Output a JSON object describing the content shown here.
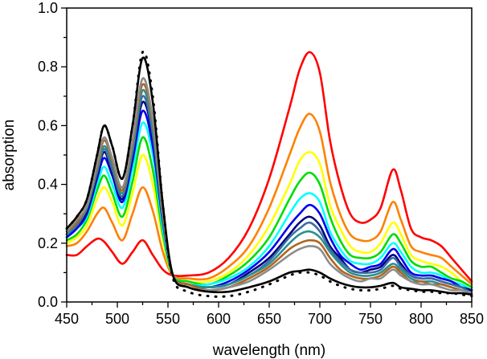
{
  "chart_data": {
    "type": "line",
    "title": "",
    "xlabel": "wavelength (nm)",
    "ylabel": "absorption",
    "xlim": [
      450,
      850
    ],
    "ylim": [
      0,
      1.0
    ],
    "xticks": [
      "450",
      "500",
      "550",
      "600",
      "650",
      "700",
      "750",
      "800",
      "850"
    ],
    "yticks": [
      "0.0",
      "0.2",
      "0.4",
      "0.6",
      "0.8",
      "1.0"
    ],
    "grid": false,
    "legend": "none",
    "x": [
      450,
      460,
      470,
      480,
      487,
      495,
      505,
      515,
      525,
      535,
      545,
      555,
      570,
      590,
      610,
      630,
      650,
      670,
      680,
      690,
      700,
      710,
      720,
      730,
      740,
      750,
      760,
      772,
      780,
      790,
      800,
      810,
      820,
      830,
      840,
      850
    ],
    "series": [
      {
        "color": "#ff0000",
        "style": "solid",
        "values": [
          0.16,
          0.16,
          0.19,
          0.215,
          0.205,
          0.17,
          0.13,
          0.17,
          0.21,
          0.16,
          0.11,
          0.09,
          0.09,
          0.1,
          0.15,
          0.25,
          0.42,
          0.66,
          0.79,
          0.85,
          0.78,
          0.55,
          0.4,
          0.3,
          0.27,
          0.28,
          0.32,
          0.45,
          0.38,
          0.25,
          0.22,
          0.21,
          0.19,
          0.15,
          0.11,
          0.07
        ]
      },
      {
        "color": "#ff8000",
        "style": "solid",
        "values": [
          0.19,
          0.2,
          0.24,
          0.3,
          0.32,
          0.27,
          0.21,
          0.3,
          0.39,
          0.31,
          0.17,
          0.09,
          0.08,
          0.08,
          0.12,
          0.19,
          0.32,
          0.5,
          0.59,
          0.64,
          0.58,
          0.41,
          0.3,
          0.23,
          0.21,
          0.21,
          0.24,
          0.34,
          0.28,
          0.19,
          0.17,
          0.16,
          0.15,
          0.12,
          0.09,
          0.06
        ]
      },
      {
        "color": "#ffff00",
        "style": "solid",
        "values": [
          0.2,
          0.22,
          0.26,
          0.35,
          0.39,
          0.34,
          0.26,
          0.37,
          0.5,
          0.4,
          0.21,
          0.09,
          0.07,
          0.07,
          0.1,
          0.16,
          0.26,
          0.4,
          0.48,
          0.51,
          0.47,
          0.33,
          0.25,
          0.19,
          0.17,
          0.17,
          0.2,
          0.27,
          0.23,
          0.16,
          0.14,
          0.13,
          0.12,
          0.1,
          0.07,
          0.05
        ]
      },
      {
        "color": "#00dd00",
        "style": "solid",
        "values": [
          0.21,
          0.23,
          0.28,
          0.38,
          0.43,
          0.37,
          0.29,
          0.41,
          0.56,
          0.45,
          0.23,
          0.09,
          0.07,
          0.06,
          0.09,
          0.14,
          0.22,
          0.35,
          0.41,
          0.44,
          0.4,
          0.29,
          0.21,
          0.16,
          0.15,
          0.15,
          0.17,
          0.23,
          0.2,
          0.14,
          0.12,
          0.12,
          0.1,
          0.08,
          0.07,
          0.05
        ]
      },
      {
        "color": "#00ffff",
        "style": "solid",
        "values": [
          0.22,
          0.25,
          0.29,
          0.4,
          0.46,
          0.4,
          0.32,
          0.45,
          0.61,
          0.5,
          0.25,
          0.09,
          0.06,
          0.06,
          0.08,
          0.12,
          0.19,
          0.3,
          0.35,
          0.37,
          0.34,
          0.24,
          0.18,
          0.14,
          0.13,
          0.13,
          0.15,
          0.2,
          0.17,
          0.12,
          0.1,
          0.1,
          0.09,
          0.07,
          0.06,
          0.04
        ]
      },
      {
        "color": "#0000ee",
        "style": "solid",
        "values": [
          0.22,
          0.25,
          0.3,
          0.42,
          0.49,
          0.43,
          0.34,
          0.48,
          0.65,
          0.53,
          0.27,
          0.09,
          0.06,
          0.05,
          0.07,
          0.11,
          0.17,
          0.26,
          0.3,
          0.33,
          0.3,
          0.22,
          0.16,
          0.13,
          0.11,
          0.12,
          0.13,
          0.18,
          0.15,
          0.1,
          0.09,
          0.09,
          0.08,
          0.07,
          0.05,
          0.04
        ]
      },
      {
        "color": "#000080",
        "style": "solid",
        "values": [
          0.23,
          0.26,
          0.31,
          0.43,
          0.51,
          0.44,
          0.35,
          0.5,
          0.68,
          0.56,
          0.28,
          0.09,
          0.06,
          0.05,
          0.06,
          0.1,
          0.15,
          0.23,
          0.27,
          0.29,
          0.26,
          0.19,
          0.15,
          0.11,
          0.1,
          0.11,
          0.12,
          0.16,
          0.13,
          0.09,
          0.08,
          0.08,
          0.07,
          0.06,
          0.05,
          0.04
        ]
      },
      {
        "color": "#3a6ea5",
        "style": "solid",
        "values": [
          0.23,
          0.26,
          0.32,
          0.44,
          0.52,
          0.45,
          0.36,
          0.51,
          0.7,
          0.57,
          0.28,
          0.09,
          0.06,
          0.05,
          0.06,
          0.09,
          0.14,
          0.22,
          0.25,
          0.27,
          0.24,
          0.18,
          0.14,
          0.11,
          0.1,
          0.1,
          0.11,
          0.15,
          0.12,
          0.09,
          0.08,
          0.08,
          0.07,
          0.06,
          0.05,
          0.03
        ]
      },
      {
        "color": "#2a9090",
        "style": "solid",
        "values": [
          0.23,
          0.27,
          0.32,
          0.45,
          0.53,
          0.47,
          0.37,
          0.52,
          0.72,
          0.59,
          0.29,
          0.09,
          0.06,
          0.05,
          0.06,
          0.09,
          0.13,
          0.2,
          0.23,
          0.24,
          0.22,
          0.17,
          0.13,
          0.1,
          0.09,
          0.09,
          0.1,
          0.13,
          0.11,
          0.08,
          0.07,
          0.07,
          0.06,
          0.05,
          0.04,
          0.03
        ]
      },
      {
        "color": "#b0651e",
        "style": "solid",
        "values": [
          0.24,
          0.27,
          0.33,
          0.46,
          0.55,
          0.48,
          0.38,
          0.54,
          0.74,
          0.61,
          0.3,
          0.09,
          0.06,
          0.04,
          0.05,
          0.08,
          0.12,
          0.18,
          0.2,
          0.21,
          0.2,
          0.15,
          0.11,
          0.09,
          0.08,
          0.08,
          0.09,
          0.12,
          0.1,
          0.07,
          0.07,
          0.06,
          0.06,
          0.05,
          0.04,
          0.03
        ]
      },
      {
        "color": "#8c8c8c",
        "style": "solid",
        "values": [
          0.24,
          0.28,
          0.33,
          0.47,
          0.56,
          0.49,
          0.39,
          0.55,
          0.76,
          0.62,
          0.31,
          0.09,
          0.05,
          0.04,
          0.05,
          0.07,
          0.11,
          0.16,
          0.18,
          0.19,
          0.18,
          0.13,
          0.1,
          0.08,
          0.07,
          0.08,
          0.08,
          0.11,
          0.09,
          0.07,
          0.06,
          0.06,
          0.05,
          0.04,
          0.04,
          0.03
        ]
      },
      {
        "color": "#000000",
        "style": "solid",
        "values": [
          0.25,
          0.29,
          0.35,
          0.5,
          0.6,
          0.53,
          0.42,
          0.6,
          0.83,
          0.68,
          0.33,
          0.09,
          0.05,
          0.035,
          0.035,
          0.05,
          0.07,
          0.1,
          0.105,
          0.11,
          0.1,
          0.08,
          0.065,
          0.055,
          0.05,
          0.05,
          0.055,
          0.065,
          0.05,
          0.045,
          0.04,
          0.04,
          0.035,
          0.03,
          0.03,
          0.025
        ]
      },
      {
        "color": "#000000",
        "style": "dotted",
        "values": [
          0.25,
          0.29,
          0.35,
          0.5,
          0.6,
          0.53,
          0.42,
          0.6,
          0.85,
          0.7,
          0.33,
          0.08,
          0.035,
          0.02,
          0.02,
          0.035,
          0.06,
          0.09,
          0.1,
          0.1,
          0.09,
          0.07,
          0.055,
          0.045,
          0.04,
          0.04,
          0.045,
          0.055,
          0.045,
          0.04,
          0.035,
          0.035,
          0.03,
          0.03,
          0.025,
          0.02
        ]
      }
    ]
  }
}
